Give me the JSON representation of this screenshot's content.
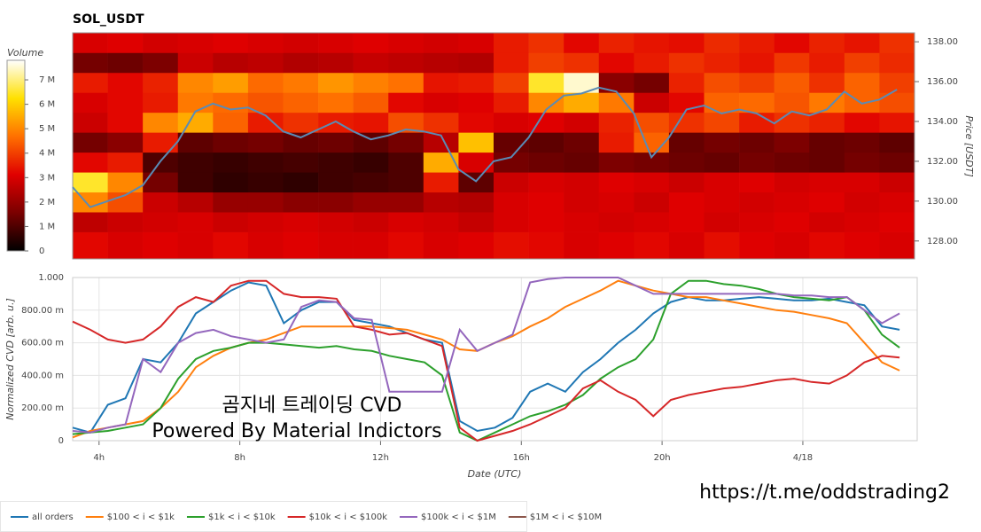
{
  "chart_data": [
    {
      "type": "heatmap",
      "title": "SOL_USDT",
      "colorbar_title": "Volume",
      "xlim": [
        3.25,
        27.25
      ],
      "ylim": [
        127.1,
        138.45
      ],
      "ylabel": "Price [USDT]",
      "yticks": [
        {
          "value": 128,
          "label": "128.00"
        },
        {
          "value": 130,
          "label": "130.00"
        },
        {
          "value": 132,
          "label": "132.00"
        },
        {
          "value": 134,
          "label": "134.00"
        },
        {
          "value": 136,
          "label": "136.00"
        },
        {
          "value": 138,
          "label": "138.00"
        }
      ],
      "zlim": [
        0,
        7.8
      ],
      "zticks": [
        0,
        {
          "value": 1,
          "label": "1 M"
        },
        {
          "value": 2,
          "label": "2 M"
        },
        {
          "value": 3,
          "label": "3 M"
        },
        {
          "value": 4,
          "label": "4 M"
        },
        {
          "value": 5,
          "label": "5 M"
        },
        {
          "value": 6,
          "label": "6 M"
        },
        {
          "value": 7,
          "label": "7 M"
        }
      ],
      "colorscale": [
        "#000000",
        "#7a0000",
        "#e00000",
        "#ff7000",
        "#ffe000",
        "#ffffff"
      ],
      "xbins": [
        3.25,
        4.25,
        5.25,
        6.25,
        7.25,
        8.25,
        9.25,
        10.25,
        11.25,
        12.25,
        13.25,
        14.25,
        15.25,
        16.25,
        17.25,
        18.25,
        19.25,
        20.25,
        21.25,
        22.25,
        23.25,
        24.25,
        25.25,
        26.25,
        27.25
      ],
      "ybins": [
        127.1,
        128.45,
        129.45,
        130.45,
        131.45,
        132.45,
        133.45,
        134.45,
        135.45,
        136.45,
        137.45,
        138.45
      ],
      "z": [
        [
          3.2,
          3,
          3.1,
          3,
          3.2,
          3,
          3.1,
          3,
          3,
          3.2,
          3,
          3.1,
          3.3,
          3.2,
          3,
          3.1,
          3.2,
          3,
          3.3,
          3.1,
          3,
          3.2,
          3.1,
          3
        ],
        [
          2.6,
          2.8,
          2.9,
          3,
          2.8,
          2.9,
          3,
          2.9,
          2.8,
          3,
          2.9,
          2.7,
          3,
          3.1,
          3,
          2.9,
          3,
          3.1,
          2.9,
          3,
          3.1,
          2.9,
          3,
          3.1
        ],
        [
          5,
          4.2,
          2.8,
          2.5,
          2,
          2,
          1.8,
          1.8,
          2,
          2,
          2.5,
          2.4,
          3,
          3.1,
          2.9,
          3,
          2.8,
          3.1,
          3,
          2.9,
          3,
          3.1,
          2.9,
          3
        ],
        [
          6.5,
          5,
          1.5,
          0.8,
          0.6,
          0.7,
          0.6,
          0.8,
          0.9,
          1,
          3.5,
          1.2,
          2.8,
          3,
          2.9,
          3.1,
          3,
          2.8,
          3,
          3.1,
          2.9,
          3,
          3,
          2.8
        ],
        [
          3.2,
          3.5,
          1,
          0.8,
          0.7,
          0.8,
          0.9,
          0.8,
          0.7,
          1,
          5.5,
          3,
          1.5,
          1.4,
          1.3,
          1.6,
          1.5,
          1.4,
          1.3,
          1.5,
          1.4,
          1.3,
          1.5,
          1.4
        ],
        [
          1.5,
          1.8,
          3.5,
          1.2,
          1.4,
          1.5,
          1.3,
          1.4,
          1.2,
          1.5,
          2.5,
          5.8,
          1.3,
          1.2,
          1.4,
          3.5,
          4.5,
          1.3,
          1.5,
          1.4,
          1.6,
          1.3,
          1.4,
          1.2
        ],
        [
          2.8,
          3.2,
          5,
          5.5,
          4.5,
          3.5,
          3.8,
          3.5,
          3.4,
          4.2,
          3.8,
          3.2,
          3,
          3.1,
          2.9,
          3.6,
          4.2,
          3.8,
          4.1,
          3.5,
          3.8,
          3.6,
          3.2,
          3.4
        ],
        [
          3,
          3.2,
          3.5,
          4.8,
          4.6,
          4.3,
          4.5,
          4.7,
          4.4,
          3.2,
          3,
          3.1,
          3.5,
          5,
          5.5,
          4.8,
          2.8,
          3.2,
          4.5,
          4.6,
          4.3,
          4.8,
          4.5,
          4.2
        ],
        [
          3.5,
          3.2,
          3.6,
          5,
          5.3,
          4.6,
          4.8,
          5.2,
          4.9,
          4.7,
          3.4,
          3.5,
          4,
          6.5,
          7.5,
          1.8,
          1.5,
          3.6,
          4.2,
          4,
          4.4,
          3.8,
          4.5,
          4
        ],
        [
          1.5,
          1.4,
          1.6,
          2.8,
          2.5,
          2.6,
          2.4,
          2.5,
          2.7,
          2.6,
          2.5,
          2.4,
          3.5,
          4,
          3.8,
          3.2,
          3.5,
          3.8,
          3.6,
          3.4,
          3.9,
          3.5,
          4,
          3.7
        ],
        [
          3,
          3.1,
          2.9,
          3,
          3.1,
          3,
          2.9,
          3,
          3.1,
          3,
          2.9,
          3,
          3.5,
          3.8,
          3.2,
          3.6,
          3.4,
          3.3,
          3.7,
          3.5,
          3.2,
          3.6,
          3.4,
          3.8
        ]
      ],
      "x": [
        3.25,
        3.75,
        4.25,
        4.75,
        5.25,
        5.75,
        6.25,
        6.75,
        7.25,
        7.75,
        8.25,
        8.75,
        9.25,
        9.75,
        10.25,
        10.75,
        11.25,
        11.75,
        12.25,
        12.75,
        13.25,
        13.75,
        14.25,
        14.75,
        15.25,
        15.75,
        16.25,
        16.75,
        17.25,
        17.75,
        18.25,
        18.75,
        19.25,
        19.75,
        20.25,
        20.75,
        21.25,
        21.75,
        22.25,
        22.75,
        23.25,
        23.75,
        24.25,
        24.75,
        25.25,
        25.75,
        26.25,
        26.75
      ],
      "series": [
        {
          "color": "#5a8bb5",
          "values": [
            130.7,
            129.7,
            130.0,
            130.3,
            130.8,
            132.0,
            133.0,
            134.5,
            134.9,
            134.6,
            134.7,
            134.3,
            133.5,
            133.2,
            133.6,
            134.0,
            133.5,
            133.1,
            133.3,
            133.6,
            133.5,
            133.3,
            131.6,
            131.0,
            132.0,
            132.2,
            133.2,
            134.6,
            135.3,
            135.4,
            135.7,
            135.5,
            134.4,
            132.2,
            133.2,
            134.6,
            134.8,
            134.4,
            134.6,
            134.4,
            133.9,
            134.5,
            134.3,
            134.6,
            135.5,
            134.9,
            135.1,
            135.6
          ]
        }
      ]
    },
    {
      "type": "line",
      "xlabel": "Date (UTC)",
      "ylabel": "Normalized CVD [arb. u.]",
      "xlim": [
        3.25,
        27.25
      ],
      "ylim": [
        0,
        1
      ],
      "grid": true,
      "xticks": [
        {
          "value": 4,
          "label": "4h"
        },
        {
          "value": 8,
          "label": "8h"
        },
        {
          "value": 12,
          "label": "12h"
        },
        {
          "value": 16,
          "label": "16h"
        },
        {
          "value": 20,
          "label": "20h"
        },
        {
          "value": 24,
          "label": "4/18"
        }
      ],
      "yticks": [
        0,
        {
          "value": 0.2,
          "label": "200.00 m"
        },
        {
          "value": 0.4,
          "label": "400.00 m"
        },
        {
          "value": 0.6,
          "label": "600.00 m"
        },
        {
          "value": 0.8,
          "label": "800.00 m"
        },
        {
          "value": 1,
          "label": "1.000"
        }
      ],
      "x": [
        3.25,
        3.75,
        4.25,
        4.75,
        5.25,
        5.75,
        6.25,
        6.75,
        7.25,
        7.75,
        8.25,
        8.75,
        9.25,
        9.75,
        10.25,
        10.75,
        11.25,
        11.75,
        12.25,
        12.75,
        13.25,
        13.75,
        14.25,
        14.75,
        15.25,
        15.75,
        16.25,
        16.75,
        17.25,
        17.75,
        18.25,
        18.75,
        19.25,
        19.75,
        20.25,
        20.75,
        21.25,
        21.75,
        22.25,
        22.75,
        23.25,
        23.75,
        24.25,
        24.75,
        25.25,
        25.75,
        26.25,
        26.75
      ],
      "series": [
        {
          "name": "all orders",
          "color": "#1f77b4",
          "values": [
            0.08,
            0.05,
            0.22,
            0.26,
            0.5,
            0.48,
            0.6,
            0.78,
            0.85,
            0.92,
            0.97,
            0.95,
            0.72,
            0.8,
            0.85,
            0.85,
            0.74,
            0.72,
            0.7,
            0.66,
            0.62,
            0.6,
            0.12,
            0.06,
            0.08,
            0.14,
            0.3,
            0.35,
            0.3,
            0.42,
            0.5,
            0.6,
            0.68,
            0.78,
            0.85,
            0.88,
            0.86,
            0.86,
            0.87,
            0.88,
            0.87,
            0.86,
            0.86,
            0.87,
            0.85,
            0.83,
            0.7,
            0.68
          ]
        },
        {
          "name": "$100 < i < $1k",
          "color": "#ff7f0e",
          "values": [
            0.02,
            0.06,
            0.08,
            0.1,
            0.12,
            0.2,
            0.3,
            0.45,
            0.52,
            0.57,
            0.6,
            0.62,
            0.66,
            0.7,
            0.7,
            0.7,
            0.7,
            0.7,
            0.69,
            0.68,
            0.65,
            0.62,
            0.56,
            0.55,
            0.6,
            0.64,
            0.7,
            0.75,
            0.82,
            0.87,
            0.92,
            0.98,
            0.95,
            0.92,
            0.9,
            0.88,
            0.88,
            0.86,
            0.84,
            0.82,
            0.8,
            0.79,
            0.77,
            0.75,
            0.72,
            0.6,
            0.48,
            0.43
          ]
        },
        {
          "name": "$1k < i < $10k",
          "color": "#2ca02c",
          "values": [
            0.04,
            0.05,
            0.06,
            0.08,
            0.1,
            0.2,
            0.38,
            0.5,
            0.55,
            0.57,
            0.6,
            0.6,
            0.59,
            0.58,
            0.57,
            0.58,
            0.56,
            0.55,
            0.52,
            0.5,
            0.48,
            0.4,
            0.05,
            0.0,
            0.05,
            0.1,
            0.15,
            0.18,
            0.22,
            0.28,
            0.38,
            0.45,
            0.5,
            0.62,
            0.9,
            0.98,
            0.98,
            0.96,
            0.95,
            0.93,
            0.9,
            0.88,
            0.87,
            0.86,
            0.88,
            0.8,
            0.65,
            0.57
          ]
        },
        {
          "name": "$10k < i < $100k",
          "color": "#d62728",
          "values": [
            0.73,
            0.68,
            0.62,
            0.6,
            0.62,
            0.7,
            0.82,
            0.88,
            0.85,
            0.95,
            0.98,
            0.98,
            0.9,
            0.88,
            0.88,
            0.87,
            0.7,
            0.68,
            0.65,
            0.66,
            0.62,
            0.58,
            0.08,
            0.0,
            0.03,
            0.06,
            0.1,
            0.15,
            0.2,
            0.32,
            0.37,
            0.3,
            0.25,
            0.15,
            0.25,
            0.28,
            0.3,
            0.32,
            0.33,
            0.35,
            0.37,
            0.38,
            0.36,
            0.35,
            0.4,
            0.48,
            0.52,
            0.51
          ]
        },
        {
          "name": "$100k < i < $1M",
          "color": "#9467bd",
          "values": [
            0.06,
            0.05,
            0.08,
            0.1,
            0.5,
            0.42,
            0.6,
            0.66,
            0.68,
            0.64,
            0.62,
            0.6,
            0.62,
            0.82,
            0.86,
            0.85,
            0.75,
            0.74,
            0.3,
            0.3,
            0.3,
            0.3,
            0.68,
            0.55,
            0.6,
            0.65,
            0.97,
            0.99,
            1.0,
            1.0,
            1.0,
            1.0,
            0.95,
            0.9,
            0.9,
            0.9,
            0.9,
            0.9,
            0.9,
            0.9,
            0.9,
            0.89,
            0.89,
            0.88,
            0.88,
            0.8,
            0.72,
            0.78
          ]
        },
        {
          "name": "$1M < i < $10M",
          "color": "#8c564b",
          "values": [
            null,
            null,
            null,
            null,
            null,
            null,
            null,
            null,
            null,
            null,
            null,
            null,
            null,
            null,
            null,
            null,
            null,
            null,
            null,
            null,
            null,
            null,
            null,
            null,
            null,
            null,
            null,
            null,
            null,
            null,
            null,
            null,
            null,
            null,
            null,
            null,
            null,
            null,
            null,
            null,
            null,
            null,
            null,
            null,
            null,
            null,
            null,
            null
          ]
        }
      ]
    }
  ],
  "watermark": {
    "line1": "곰지네 트레이딩 CVD",
    "line2": "Powered By Material Indictors",
    "link": "https://t.me/oddstrading2"
  }
}
